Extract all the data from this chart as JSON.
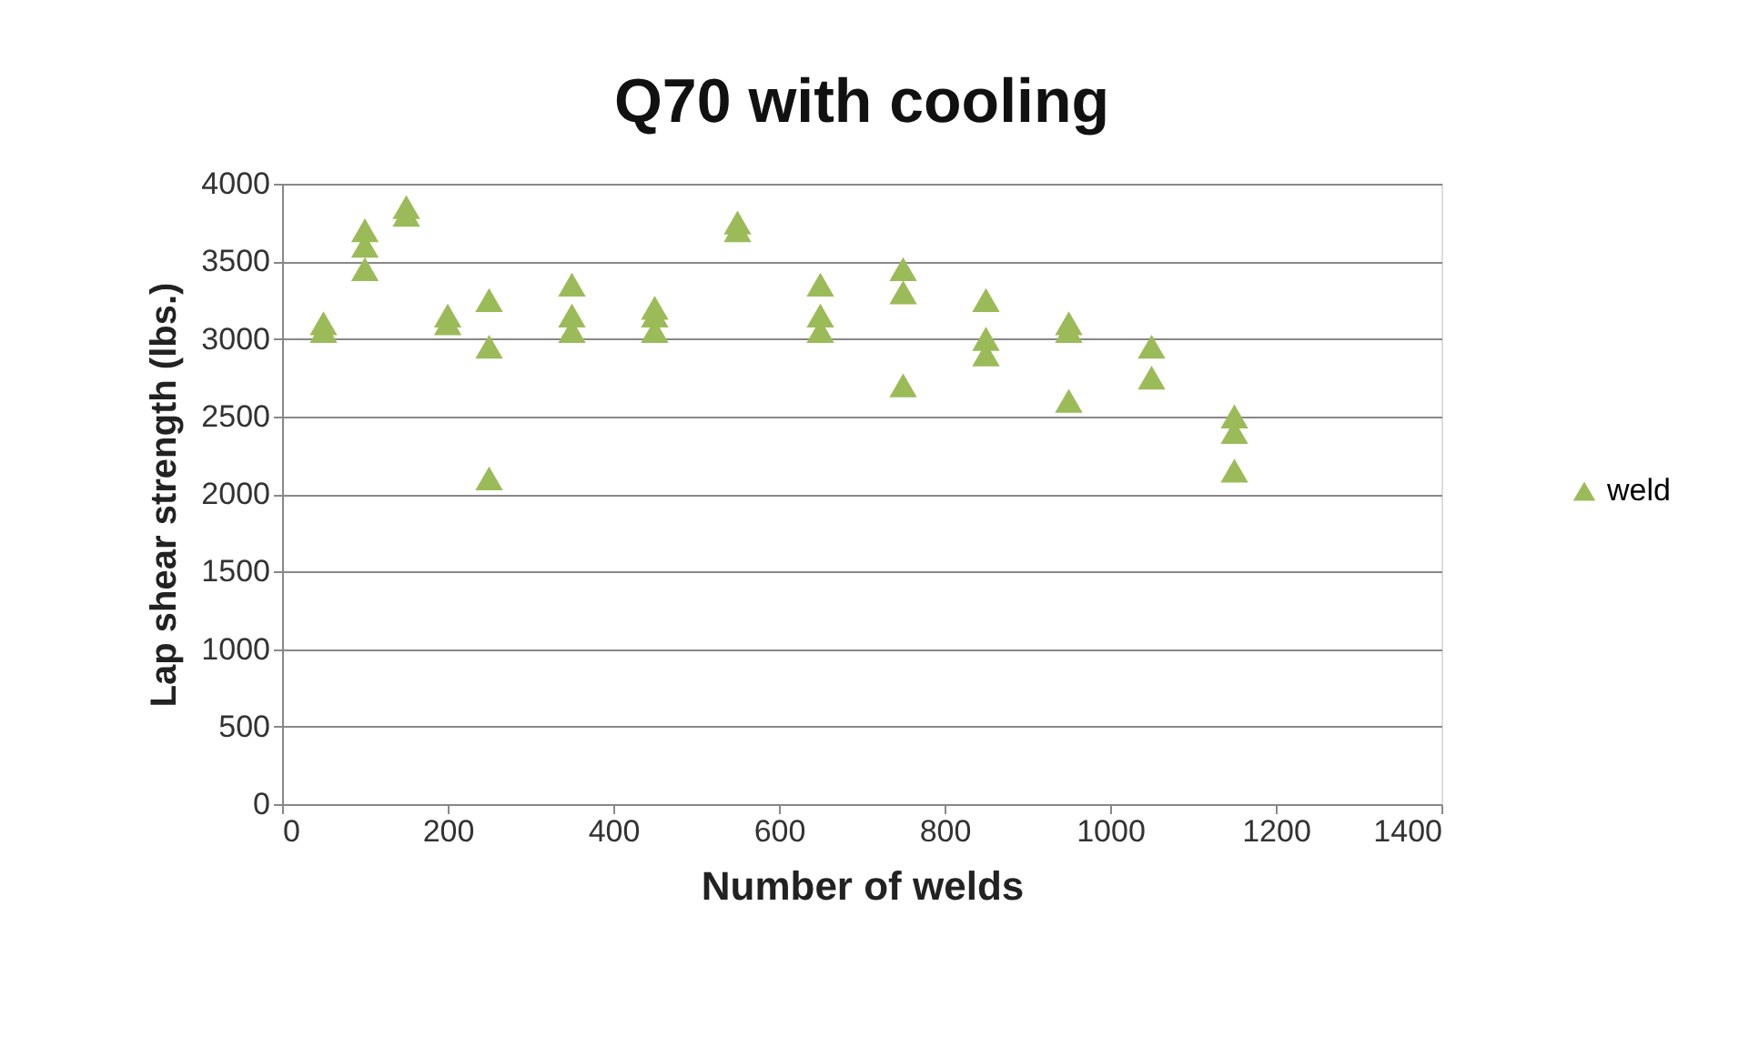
{
  "chart_data": {
    "type": "scatter",
    "title": "Q70 with cooling",
    "xlabel": "Number of welds",
    "ylabel": "Lap shear strength (lbs.)",
    "series": [
      {
        "name": "weld",
        "color": "#9bbb59",
        "x": [
          50,
          50,
          100,
          100,
          100,
          150,
          150,
          200,
          200,
          250,
          250,
          250,
          350,
          350,
          350,
          450,
          450,
          450,
          550,
          550,
          650,
          650,
          650,
          750,
          750,
          750,
          850,
          850,
          850,
          950,
          950,
          950,
          1050,
          1050,
          1150,
          1150,
          1150
        ],
        "values": [
          3050,
          3100,
          3450,
          3600,
          3700,
          3800,
          3850,
          3100,
          3150,
          3250,
          2950,
          2100,
          3050,
          3150,
          3350,
          3050,
          3150,
          3200,
          3700,
          3750,
          3050,
          3150,
          3350,
          3300,
          3450,
          2700,
          3250,
          2900,
          3000,
          3050,
          3100,
          2600,
          2950,
          2750,
          2500,
          2400,
          2150
        ]
      }
    ],
    "xlim": [
      0,
      1400
    ],
    "xticks": [
      0,
      200,
      400,
      600,
      800,
      1000,
      1200,
      1400
    ],
    "ylim": [
      0,
      4000
    ],
    "yticks": [
      0,
      500,
      1000,
      1500,
      2000,
      2500,
      3000,
      3500,
      4000
    ],
    "grid": "y",
    "legend": "right",
    "marker": "triangle"
  }
}
